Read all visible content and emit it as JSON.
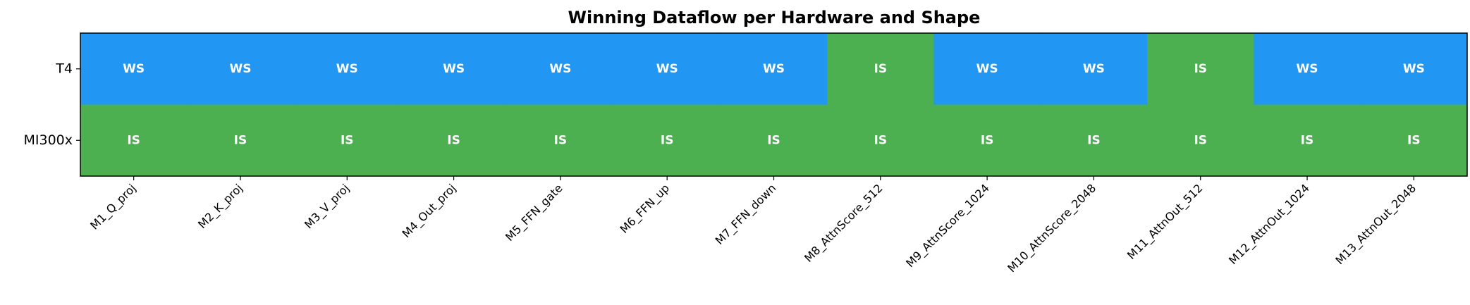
{
  "chart_data": {
    "type": "heatmap",
    "title": "Winning Dataflow per Hardware and Shape",
    "x_categories": [
      "M1_Q_proj",
      "M2_K_proj",
      "M3_V_proj",
      "M4_Out_proj",
      "M5_FFN_gate",
      "M6_FFN_up",
      "M7_FFN_down",
      "M8_AttnScore_512",
      "M9_AttnScore_1024",
      "M10_AttnScore_2048",
      "M11_AttnOut_512",
      "M12_AttnOut_1024",
      "M13_AttnOut_2048"
    ],
    "y_categories": [
      "T4",
      "MI300x"
    ],
    "values": [
      [
        "WS",
        "WS",
        "WS",
        "WS",
        "WS",
        "WS",
        "WS",
        "IS",
        "WS",
        "WS",
        "IS",
        "WS",
        "WS"
      ],
      [
        "IS",
        "IS",
        "IS",
        "IS",
        "IS",
        "IS",
        "IS",
        "IS",
        "IS",
        "IS",
        "IS",
        "IS",
        "IS"
      ]
    ],
    "colors": {
      "WS": "#2196F3",
      "IS": "#4CAF50"
    }
  }
}
